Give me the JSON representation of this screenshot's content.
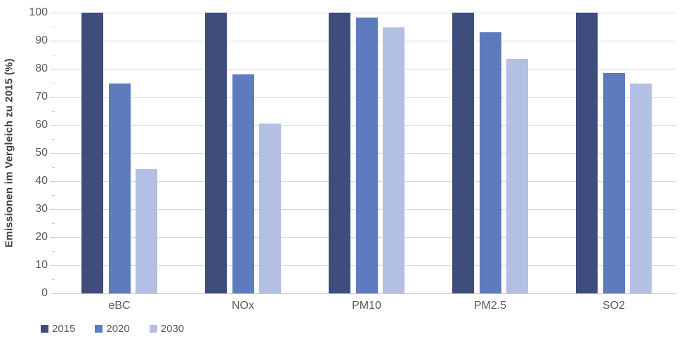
{
  "chart_data": {
    "type": "bar",
    "title": "",
    "xlabel": "",
    "ylabel": "Emissionen im Vergleich zu 2015 (%)",
    "categories": [
      "eBC",
      "NOx",
      "PM10",
      "PM2.5",
      "SO2"
    ],
    "series": [
      {
        "name": "2015",
        "color": "#3F4D7C",
        "values": [
          100,
          100,
          100,
          100,
          100
        ]
      },
      {
        "name": "2020",
        "color": "#5E7BBD",
        "values": [
          74.7,
          78.0,
          98.2,
          92.9,
          78.6
        ]
      },
      {
        "name": "2030",
        "color": "#B3C0E3",
        "values": [
          44.3,
          60.5,
          94.7,
          83.4,
          74.7
        ]
      }
    ],
    "ylim": [
      0,
      100
    ],
    "yticks": [
      0,
      10,
      20,
      30,
      40,
      50,
      60,
      70,
      80,
      90,
      100
    ],
    "minor_ytick_step": 5,
    "grid": true,
    "legend_position": "bottom-left",
    "colors": {
      "gridline": "#D9D9D9",
      "axis_line": "#C9C9C9",
      "tick_label": "#595959",
      "axis_title": "#404040",
      "background": "#FFFFFF"
    }
  }
}
